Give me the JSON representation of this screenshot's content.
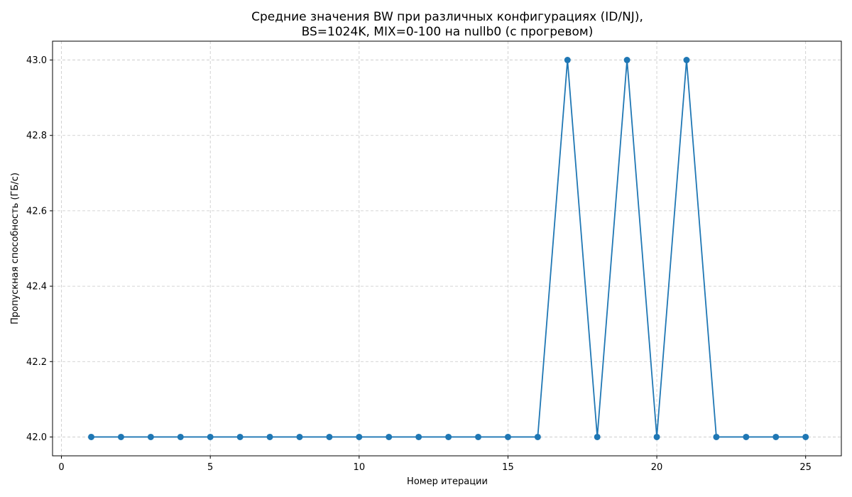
{
  "chart_data": {
    "type": "line",
    "title_line1": "Средние значения BW при различных конфигурациях (ID/NJ),",
    "title_line2": "BS=1024K, MIX=0-100 на nullb0 (с прогревом)",
    "xlabel": "Номер итерации",
    "ylabel": "Пропускная способность (ГБ/с)",
    "xlim": [
      -0.3,
      26.2
    ],
    "ylim": [
      41.95,
      43.05
    ],
    "xticks": [
      0,
      5,
      10,
      15,
      20,
      25
    ],
    "yticks": [
      42.0,
      42.2,
      42.4,
      42.6,
      42.8,
      43.0
    ],
    "grid": true,
    "series": [
      {
        "color": "#1f77b4",
        "marker": "circle",
        "x": [
          1,
          2,
          3,
          4,
          5,
          6,
          7,
          8,
          9,
          10,
          11,
          12,
          13,
          14,
          15,
          16,
          17,
          18,
          19,
          20,
          21,
          22,
          23,
          24,
          25
        ],
        "y": [
          42.0,
          42.0,
          42.0,
          42.0,
          42.0,
          42.0,
          42.0,
          42.0,
          42.0,
          42.0,
          42.0,
          42.0,
          42.0,
          42.0,
          42.0,
          42.0,
          43.0,
          42.0,
          43.0,
          42.0,
          43.0,
          42.0,
          42.0,
          42.0,
          42.0
        ]
      }
    ]
  }
}
